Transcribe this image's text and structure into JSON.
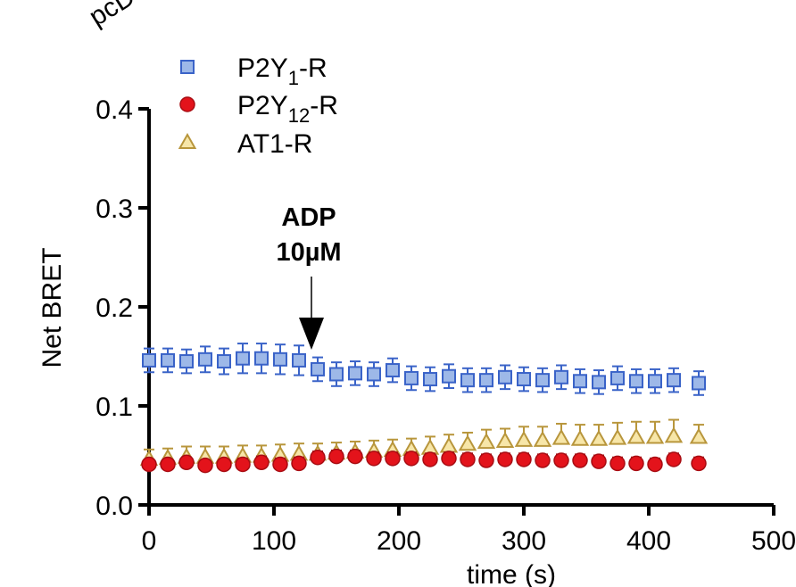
{
  "chart_data": {
    "type": "scatter",
    "xlabel": "time (s)",
    "ylabel": "Net BRET",
    "xlim": [
      0,
      500
    ],
    "ylim": [
      0,
      0.4
    ],
    "x_ticks": [
      "0",
      "100",
      "200",
      "300",
      "400",
      "500"
    ],
    "y_ticks": [
      "0.0",
      "0.1",
      "0.2",
      "0.3",
      "0.4"
    ],
    "x_tick_values": [
      0,
      100,
      200,
      300,
      400,
      500
    ],
    "y_tick_values": [
      0,
      0.1,
      0.2,
      0.3,
      0.4
    ],
    "corner_text": "pcD",
    "legend_position": "top-left",
    "annotation": {
      "line1": "ADP",
      "line2": "10µM",
      "x": 130,
      "y": 0.155
    },
    "x": [
      0,
      15,
      30,
      45,
      60,
      75,
      90,
      105,
      120,
      135,
      150,
      165,
      180,
      195,
      210,
      225,
      240,
      255,
      270,
      285,
      300,
      315,
      330,
      345,
      360,
      375,
      390,
      405,
      420,
      440
    ],
    "series": [
      {
        "name": "P2Y1-R",
        "label_base": "P2Y",
        "label_sub": "1",
        "label_suffix": "-R",
        "marker": "square",
        "color": "#9db8e8",
        "stroke": "#3a63c8",
        "values": [
          0.146,
          0.146,
          0.145,
          0.147,
          0.145,
          0.148,
          0.148,
          0.147,
          0.146,
          0.137,
          0.132,
          0.133,
          0.132,
          0.136,
          0.128,
          0.127,
          0.13,
          0.126,
          0.126,
          0.129,
          0.127,
          0.126,
          0.129,
          0.125,
          0.124,
          0.128,
          0.125,
          0.125,
          0.126,
          0.123
        ],
        "errors": [
          0.012,
          0.012,
          0.012,
          0.013,
          0.013,
          0.015,
          0.015,
          0.015,
          0.015,
          0.012,
          0.012,
          0.012,
          0.012,
          0.012,
          0.012,
          0.012,
          0.012,
          0.012,
          0.012,
          0.012,
          0.012,
          0.012,
          0.012,
          0.012,
          0.012,
          0.012,
          0.012,
          0.012,
          0.012,
          0.012
        ]
      },
      {
        "name": "P2Y12-R",
        "label_base": "P2Y",
        "label_sub": "12",
        "label_suffix": "-R",
        "marker": "circle",
        "color": "#e3131b",
        "stroke": "#a80c12",
        "values": [
          0.041,
          0.041,
          0.043,
          0.04,
          0.041,
          0.041,
          0.043,
          0.041,
          0.042,
          0.048,
          0.049,
          0.049,
          0.047,
          0.047,
          0.047,
          0.046,
          0.047,
          0.046,
          0.045,
          0.046,
          0.046,
          0.045,
          0.045,
          0.045,
          0.044,
          0.042,
          0.042,
          0.041,
          0.046,
          0.042
        ],
        "errors": [
          0.005,
          0.005,
          0.005,
          0.005,
          0.005,
          0.006,
          0.006,
          0.006,
          0.006,
          0.006,
          0.006,
          0.006,
          0.006,
          0.006,
          0.006,
          0.006,
          0.006,
          0.006,
          0.006,
          0.006,
          0.006,
          0.006,
          0.006,
          0.006,
          0.006,
          0.006,
          0.006,
          0.006,
          0.006,
          0.006
        ]
      },
      {
        "name": "AT1-R",
        "label_base": "AT1-R",
        "label_sub": "",
        "label_suffix": "",
        "marker": "triangle",
        "color": "#f7e6a8",
        "stroke": "#b8963c",
        "values": [
          0.046,
          0.047,
          0.048,
          0.048,
          0.048,
          0.049,
          0.049,
          0.05,
          0.051,
          0.051,
          0.052,
          0.053,
          0.054,
          0.055,
          0.056,
          0.057,
          0.059,
          0.061,
          0.063,
          0.064,
          0.065,
          0.065,
          0.067,
          0.066,
          0.066,
          0.067,
          0.068,
          0.068,
          0.069,
          0.068
        ],
        "errors": [
          0.01,
          0.01,
          0.011,
          0.011,
          0.011,
          0.011,
          0.011,
          0.011,
          0.011,
          0.011,
          0.011,
          0.011,
          0.011,
          0.011,
          0.011,
          0.012,
          0.012,
          0.012,
          0.013,
          0.013,
          0.014,
          0.014,
          0.015,
          0.015,
          0.015,
          0.016,
          0.016,
          0.016,
          0.017,
          0.013
        ]
      }
    ]
  }
}
